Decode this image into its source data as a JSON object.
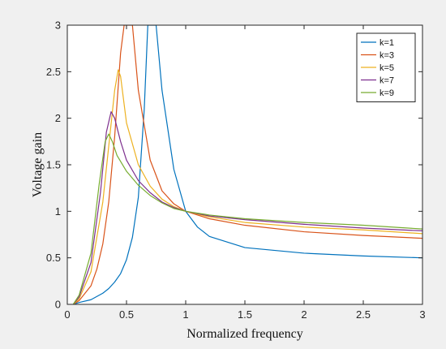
{
  "chart_data": {
    "type": "line",
    "title": "",
    "xlabel": "Normalized frequency",
    "ylabel": "Voltage gain",
    "xlim": [
      0,
      3
    ],
    "ylim": [
      0,
      3
    ],
    "xticks": [
      "0",
      "0.5",
      "1",
      "1.5",
      "2",
      "2.5",
      "3"
    ],
    "yticks": [
      "0",
      "0.5",
      "1",
      "1.5",
      "2",
      "2.5",
      "3"
    ],
    "grid": false,
    "legend_position": "top-right",
    "series": [
      {
        "name": "k=1",
        "color": "#0072BD",
        "x": [
          0.05,
          0.1,
          0.2,
          0.3,
          0.35,
          0.4,
          0.45,
          0.5,
          0.55,
          0.6,
          0.65,
          0.68,
          0.7,
          0.75,
          0.8,
          0.9,
          1.0,
          1.1,
          1.2,
          1.5,
          2.0,
          2.5,
          3.0
        ],
        "y": [
          0.0,
          0.02,
          0.05,
          0.12,
          0.17,
          0.24,
          0.33,
          0.48,
          0.72,
          1.15,
          2.1,
          3.0,
          3.0,
          3.0,
          2.3,
          1.45,
          1.0,
          0.83,
          0.73,
          0.61,
          0.55,
          0.52,
          0.5
        ]
      },
      {
        "name": "k=3",
        "color": "#D95319",
        "x": [
          0.05,
          0.1,
          0.2,
          0.25,
          0.3,
          0.35,
          0.4,
          0.45,
          0.48,
          0.5,
          0.55,
          0.6,
          0.7,
          0.8,
          0.9,
          1.0,
          1.2,
          1.5,
          2.0,
          2.5,
          3.0
        ],
        "y": [
          0.0,
          0.04,
          0.2,
          0.38,
          0.65,
          1.1,
          1.8,
          2.7,
          3.0,
          3.0,
          3.0,
          2.3,
          1.55,
          1.22,
          1.08,
          1.0,
          0.92,
          0.85,
          0.78,
          0.74,
          0.71
        ]
      },
      {
        "name": "k=5",
        "color": "#EDB120",
        "x": [
          0.05,
          0.1,
          0.2,
          0.3,
          0.35,
          0.4,
          0.43,
          0.45,
          0.5,
          0.6,
          0.7,
          0.8,
          0.9,
          1.0,
          1.2,
          1.5,
          2.0,
          2.5,
          3.0
        ],
        "y": [
          0.0,
          0.06,
          0.35,
          1.1,
          1.7,
          2.3,
          2.52,
          2.45,
          1.95,
          1.5,
          1.27,
          1.13,
          1.05,
          1.0,
          0.94,
          0.88,
          0.83,
          0.8,
          0.76
        ]
      },
      {
        "name": "k=7",
        "color": "#7E2F8E",
        "x": [
          0.05,
          0.1,
          0.2,
          0.28,
          0.33,
          0.37,
          0.4,
          0.45,
          0.5,
          0.6,
          0.7,
          0.8,
          0.9,
          1.0,
          1.2,
          1.5,
          2.0,
          2.5,
          3.0
        ],
        "y": [
          0.0,
          0.08,
          0.45,
          1.2,
          1.85,
          2.07,
          2.0,
          1.75,
          1.55,
          1.33,
          1.2,
          1.1,
          1.04,
          1.0,
          0.95,
          0.91,
          0.86,
          0.82,
          0.79
        ]
      },
      {
        "name": "k=9",
        "color": "#77AC30",
        "x": [
          0.05,
          0.1,
          0.2,
          0.27,
          0.32,
          0.35,
          0.38,
          0.42,
          0.5,
          0.6,
          0.7,
          0.8,
          0.9,
          1.0,
          1.2,
          1.5,
          2.0,
          2.5,
          3.0
        ],
        "y": [
          0.0,
          0.1,
          0.55,
          1.3,
          1.75,
          1.83,
          1.75,
          1.6,
          1.43,
          1.28,
          1.17,
          1.09,
          1.03,
          1.0,
          0.96,
          0.92,
          0.88,
          0.85,
          0.81
        ]
      }
    ]
  }
}
